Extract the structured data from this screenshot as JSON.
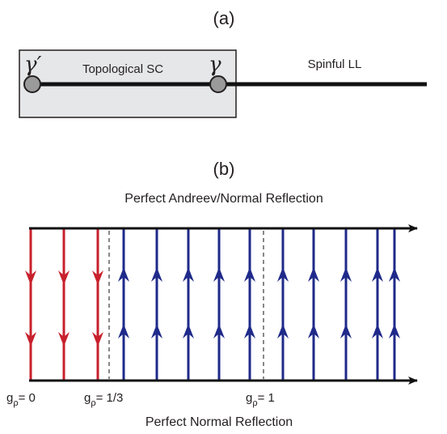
{
  "panel_a": {
    "label": "(a)",
    "gamma_prime": "γ′",
    "gamma": "γ",
    "sc_label": "Topological SC",
    "ll_label": "Spinful LL"
  },
  "panel_b": {
    "label": "(b)",
    "top_label": "Perfect Andreev/Normal Reflection",
    "bottom_label": "Perfect Normal Reflection",
    "g_symbol": "g",
    "g_subscript": "ρ",
    "ticks": [
      {
        "value": "= 0"
      },
      {
        "value": "= 1/3"
      },
      {
        "value": "= 1"
      }
    ]
  },
  "colors": {
    "red": "#c8202c",
    "blue": "#1f2a8a",
    "black": "#111111",
    "box_fill": "#e6e7e8",
    "node_fill": "#9a9a9a"
  }
}
